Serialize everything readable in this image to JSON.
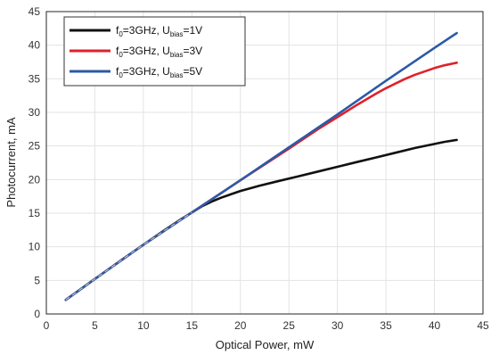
{
  "chart_data": {
    "type": "line",
    "xlabel": "Optical Power, mW",
    "ylabel": "Photocurrent, mA",
    "xlim": [
      0,
      45
    ],
    "ylim": [
      0,
      45
    ],
    "xticks": [
      0,
      5,
      10,
      15,
      20,
      25,
      30,
      35,
      40,
      45
    ],
    "yticks": [
      0,
      5,
      10,
      15,
      20,
      25,
      30,
      35,
      40,
      45
    ],
    "grid": true,
    "legend_position": "top-left",
    "series": [
      {
        "legend": {
          "f": "f",
          "f_sub": "0",
          "mid": "=3GHz, U",
          "u_sub": "bias",
          "tail": "=1V"
        },
        "color": "#111111",
        "x": [
          2,
          5,
          8,
          10,
          12,
          14,
          16,
          17,
          18,
          19,
          20,
          22,
          24,
          26,
          28,
          30,
          32,
          34,
          36,
          38,
          40,
          41,
          42.3
        ],
        "y": [
          2.1,
          5.2,
          8.3,
          10.3,
          12.3,
          14.2,
          16.0,
          16.7,
          17.3,
          17.8,
          18.3,
          19.1,
          19.8,
          20.5,
          21.2,
          21.9,
          22.6,
          23.3,
          24.0,
          24.7,
          25.3,
          25.6,
          25.9
        ]
      },
      {
        "legend": {
          "f": "f",
          "f_sub": "0",
          "mid": "=3GHz, U",
          "u_sub": "bias",
          "tail": "=3V"
        },
        "color": "#e0202a",
        "x": [
          2,
          5,
          10,
          15,
          20,
          25,
          28,
          30,
          32,
          34,
          35,
          36,
          37,
          38,
          40,
          41,
          42.3
        ],
        "y": [
          2.1,
          5.2,
          10.3,
          15.1,
          19.9,
          24.6,
          27.5,
          29.3,
          31.1,
          32.8,
          33.6,
          34.3,
          35.0,
          35.6,
          36.6,
          37.0,
          37.4
        ]
      },
      {
        "legend": {
          "f": "f",
          "f_sub": "0",
          "mid": "=3GHz, U",
          "u_sub": "bias",
          "tail": "=5V"
        },
        "color": "#2b5aa7",
        "x": [
          2,
          5,
          10,
          15,
          20,
          25,
          30,
          35,
          40,
          42.3
        ],
        "y": [
          2.1,
          5.2,
          10.3,
          15.1,
          19.9,
          24.8,
          29.7,
          34.7,
          39.6,
          41.8
        ]
      }
    ]
  }
}
